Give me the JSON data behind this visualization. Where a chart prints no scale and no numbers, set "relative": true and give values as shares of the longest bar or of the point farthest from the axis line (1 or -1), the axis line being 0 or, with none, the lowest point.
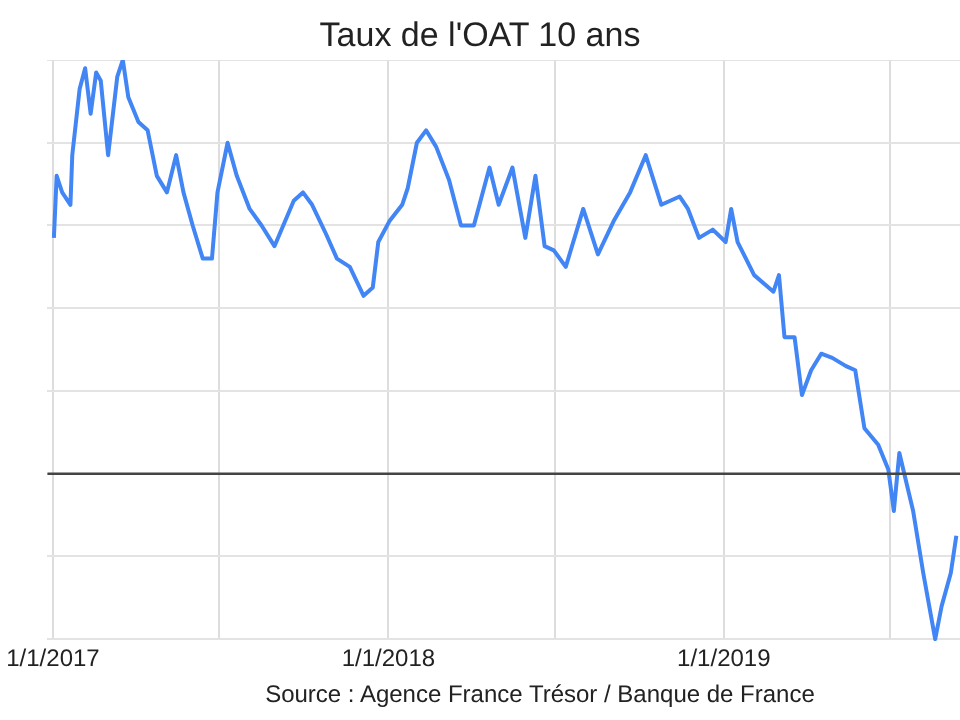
{
  "chart_data": {
    "type": "line",
    "title": "Taux de l'OAT 10 ans",
    "annotations": [
      "Source : Agence France Trésor / Banque de France"
    ],
    "relative": true,
    "grid": true,
    "legend": false,
    "marker": "none",
    "line_style": "solid",
    "xlim": [
      "2016-12-26",
      "2019-09-15"
    ],
    "xticks": [
      {
        "value": "2017-01-01",
        "label": "1/1/2017"
      },
      {
        "value": "2017-07-01",
        "label": null
      },
      {
        "value": "2018-01-01",
        "label": "1/1/2018"
      },
      {
        "value": "2018-07-01",
        "label": null
      },
      {
        "value": "2019-01-01",
        "label": "1/1/2019"
      },
      {
        "value": "2019-07-01",
        "label": null
      }
    ],
    "ref_lines": [
      {
        "axis": "y",
        "value": 0,
        "color": "#444444"
      }
    ],
    "x": [
      "2017-01-02",
      "2017-01-05",
      "2017-01-11",
      "2017-01-20",
      "2017-01-22",
      "2017-01-30",
      "2017-02-05",
      "2017-02-11",
      "2017-02-17",
      "2017-02-22",
      "2017-03-02",
      "2017-03-12",
      "2017-03-18",
      "2017-03-24",
      "2017-04-04",
      "2017-04-14",
      "2017-04-24",
      "2017-05-05",
      "2017-05-15",
      "2017-05-23",
      "2017-06-02",
      "2017-06-13",
      "2017-06-23",
      "2017-06-29",
      "2017-07-10",
      "2017-07-20",
      "2017-08-03",
      "2017-08-16",
      "2017-08-30",
      "2017-09-20",
      "2017-09-30",
      "2017-10-10",
      "2017-10-25",
      "2017-11-06",
      "2017-11-20",
      "2017-12-05",
      "2017-12-15",
      "2017-12-21",
      "2018-01-02",
      "2018-01-16",
      "2018-01-22",
      "2018-02-01",
      "2018-02-11",
      "2018-02-22",
      "2018-03-08",
      "2018-03-21",
      "2018-04-04",
      "2018-04-21",
      "2018-05-01",
      "2018-05-16",
      "2018-05-30",
      "2018-06-10",
      "2018-06-20",
      "2018-06-30",
      "2018-07-13",
      "2018-08-01",
      "2018-08-17",
      "2018-09-03",
      "2018-09-21",
      "2018-10-08",
      "2018-10-25",
      "2018-11-14",
      "2018-11-23",
      "2018-12-05",
      "2018-12-20",
      "2019-01-03",
      "2019-01-09",
      "2019-01-16",
      "2019-02-03",
      "2019-02-24",
      "2019-03-02",
      "2019-03-08",
      "2019-03-19",
      "2019-03-27",
      "2019-04-06",
      "2019-04-17",
      "2019-04-29",
      "2019-05-14",
      "2019-05-24",
      "2019-06-03",
      "2019-06-18",
      "2019-06-29",
      "2019-07-05",
      "2019-07-11",
      "2019-07-26",
      "2019-08-06",
      "2019-08-19",
      "2019-08-26",
      "2019-09-05",
      "2019-09-11"
    ],
    "series": [
      {
        "color": "#4285f4",
        "values": [
          0.57,
          0.72,
          0.68,
          0.65,
          0.77,
          0.93,
          0.98,
          0.87,
          0.97,
          0.95,
          0.77,
          0.96,
          1,
          0.91,
          0.85,
          0.83,
          0.72,
          0.68,
          0.77,
          0.68,
          0.6,
          0.52,
          0.52,
          0.68,
          0.8,
          0.72,
          0.64,
          0.6,
          0.55,
          0.66,
          0.68,
          0.65,
          0.58,
          0.52,
          0.5,
          0.43,
          0.45,
          0.56,
          0.61,
          0.65,
          0.69,
          0.8,
          0.83,
          0.79,
          0.71,
          0.6,
          0.6,
          0.74,
          0.65,
          0.74,
          0.57,
          0.72,
          0.55,
          0.54,
          0.5,
          0.64,
          0.53,
          0.61,
          0.68,
          0.77,
          0.65,
          0.67,
          0.64,
          0.57,
          0.59,
          0.56,
          0.64,
          0.56,
          0.48,
          0.44,
          0.48,
          0.33,
          0.33,
          0.19,
          0.25,
          0.29,
          0.28,
          0.26,
          0.25,
          0.11,
          0.07,
          0.01,
          -0.09,
          0.05,
          -0.09,
          -0.24,
          -0.4,
          -0.32,
          -0.24,
          -0.15
        ]
      }
    ]
  }
}
